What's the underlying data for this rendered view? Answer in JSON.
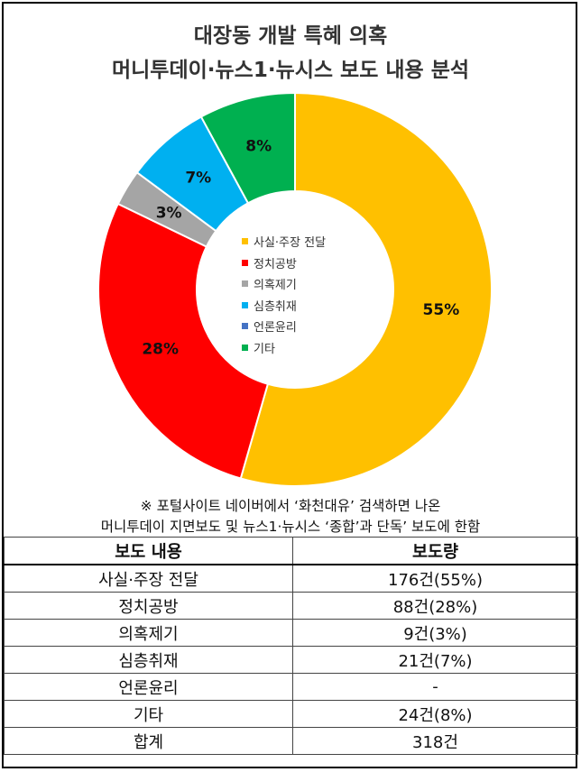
{
  "title_line1": "대장동 개발 특혜 의혹",
  "title_line2": "머니투데이·뉴스1·뉴시스 보도 내용 분석",
  "chart_data": {
    "type": "pie",
    "donut": true,
    "categories": [
      "사실·주장 전달",
      "정치공방",
      "의혹제기",
      "심층취재",
      "언론윤리",
      "기타"
    ],
    "values": [
      55,
      28,
      3,
      7,
      0,
      8
    ],
    "labels": [
      "55%",
      "28%",
      "3%",
      "7%",
      "",
      "8%"
    ],
    "colors": [
      "#FFC000",
      "#FF0000",
      "#A5A5A5",
      "#00B0F0",
      "#4472C4",
      "#00B050"
    ],
    "legend_position": "center"
  },
  "note_line1": "※ 포털사이트 네이버에서 ‘화천대유’ 검색하면 나온",
  "note_line2": "머니투데이 지면보도 및 뉴스1·뉴시스 ‘종합’과 단독’ 보도에 한함",
  "table": {
    "headers": [
      "보도 내용",
      "보도량"
    ],
    "rows": [
      [
        "사실·주장 전달",
        "176건(55%)"
      ],
      [
        "정치공방",
        "88건(28%)"
      ],
      [
        "의혹제기",
        "9건(3%)"
      ],
      [
        "심층취재",
        "21건(7%)"
      ],
      [
        "언론윤리",
        "-"
      ],
      [
        "기타",
        "24건(8%)"
      ],
      [
        "합계",
        "318건"
      ]
    ]
  }
}
